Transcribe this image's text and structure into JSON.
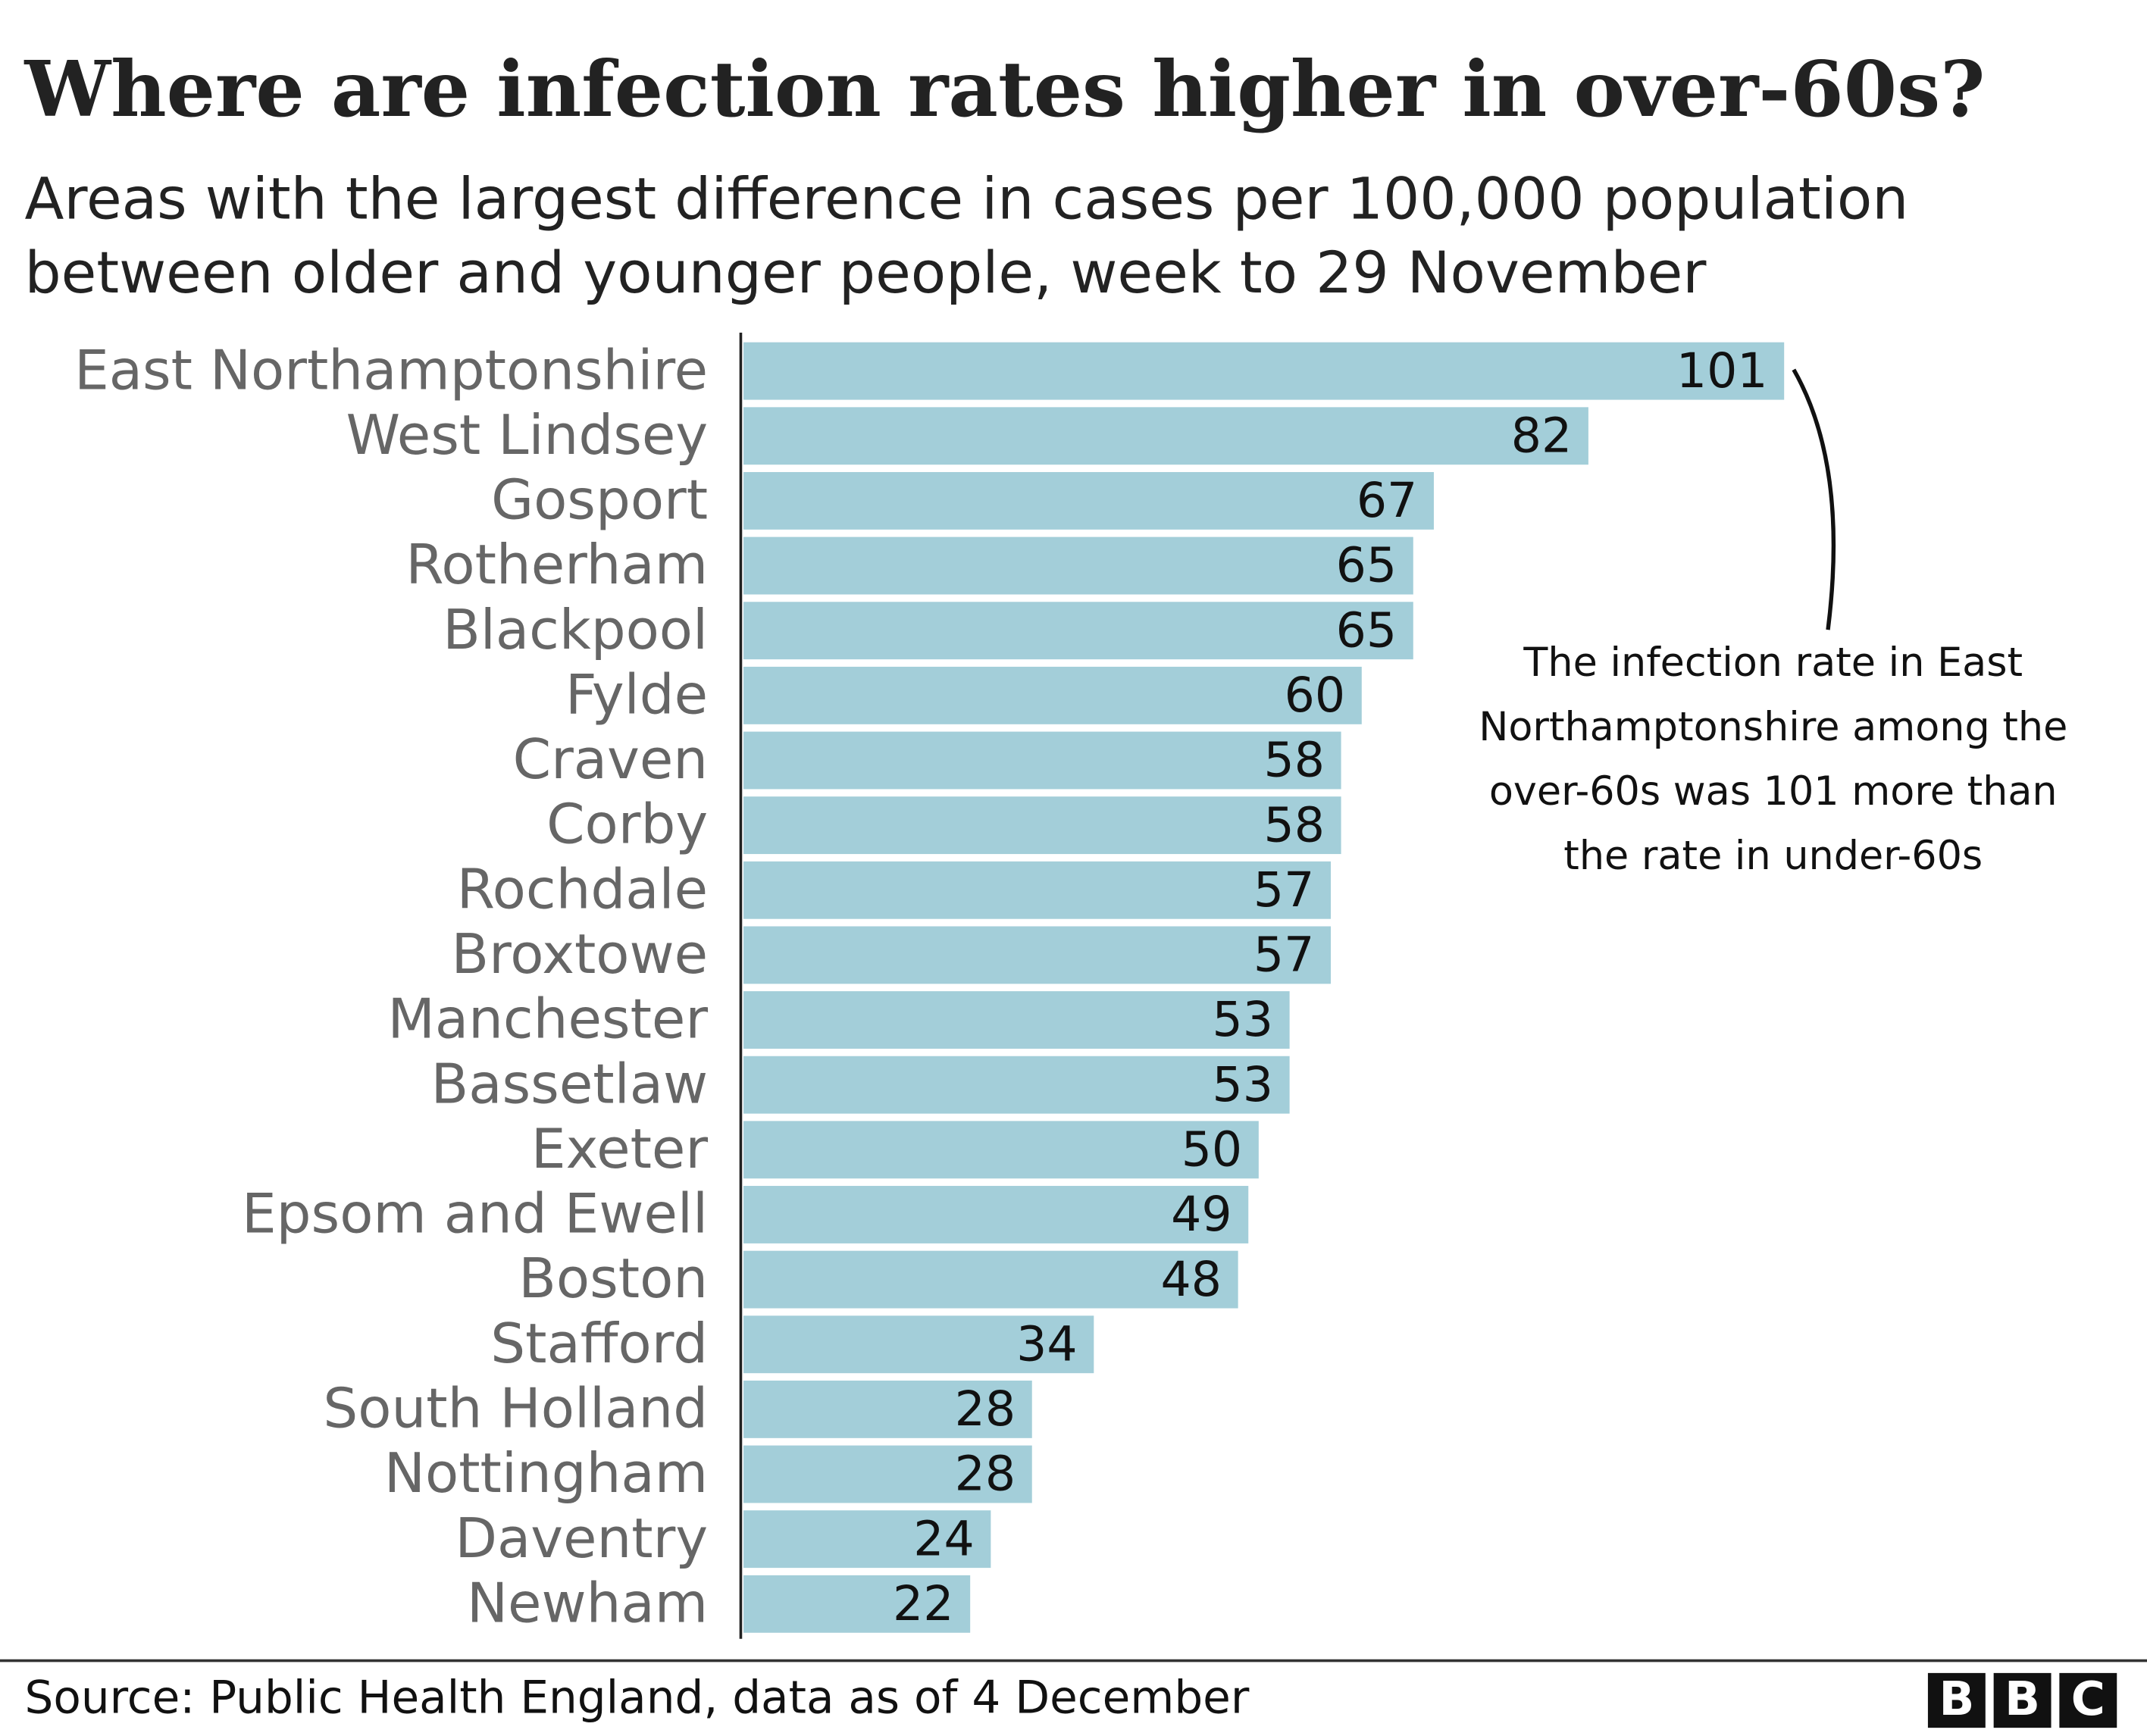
{
  "chart_data": {
    "type": "hbar",
    "title": "Where are infection rates higher in over-60s?",
    "subtitle": [
      "Areas with the largest difference in cases per 100,000 population",
      "between older and younger people, week to 29 November"
    ],
    "categories": [
      "East Northamptonshire",
      "West Lindsey",
      "Gosport",
      "Rotherham",
      "Blackpool",
      "Fylde",
      "Craven",
      "Corby",
      "Rochdale",
      "Broxtowe",
      "Manchester",
      "Bassetlaw",
      "Exeter",
      "Epsom and Ewell",
      "Boston",
      "Stafford",
      "South Holland",
      "Nottingham",
      "Daventry",
      "Newham"
    ],
    "values": [
      101,
      82,
      67,
      65,
      65,
      60,
      58,
      58,
      57,
      57,
      53,
      53,
      50,
      49,
      48,
      34,
      28,
      28,
      24,
      22
    ],
    "color": "#a3ced9",
    "annotation": [
      "The infection rate in East",
      "Northamptonshire among the",
      "over-60s was 101 more than",
      "the rate in under-60s"
    ],
    "source": "Source: Public Health England, data as of 4 December",
    "logo": [
      "B",
      "B",
      "C"
    ]
  }
}
